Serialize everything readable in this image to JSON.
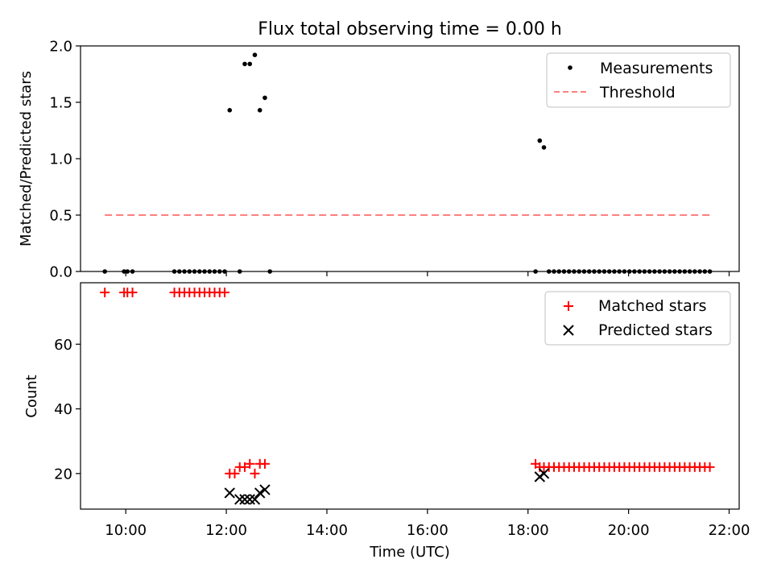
{
  "chart_data": [
    {
      "type": "scatter",
      "title": "Flux total observing time = 0.00 h",
      "xlabel": "",
      "ylabel": "Matched/Predicted stars",
      "xlim": [
        "09:06",
        "22:12"
      ],
      "ylim": [
        0,
        2.0
      ],
      "yticks": [
        0.0,
        0.5,
        1.0,
        1.5,
        2.0
      ],
      "ytick_labels": [
        "0.0",
        "0.5",
        "1.0",
        "1.5",
        "2.0"
      ],
      "legend_position": "top-right",
      "series": [
        {
          "name": "Measurements",
          "kind": "points",
          "color": "#000000",
          "x": [
            "09:35",
            "09:58",
            "10:02",
            "10:08",
            "10:58",
            "11:04",
            "11:10",
            "11:16",
            "11:22",
            "11:28",
            "11:34",
            "11:40",
            "11:46",
            "11:52",
            "11:58",
            "12:04",
            "12:16",
            "12:22",
            "12:28",
            "12:34",
            "12:40",
            "12:46",
            "12:52",
            "18:09",
            "18:14",
            "18:19",
            "18:25",
            "18:31",
            "18:37",
            "18:43",
            "18:49",
            "18:55",
            "19:01",
            "19:07",
            "19:13",
            "19:19",
            "19:25",
            "19:31",
            "19:37",
            "19:43",
            "19:49",
            "19:55",
            "20:01",
            "20:07",
            "20:13",
            "20:19",
            "20:25",
            "20:31",
            "20:37",
            "20:43",
            "20:49",
            "20:55",
            "21:01",
            "21:07",
            "21:13",
            "21:19",
            "21:25",
            "21:31",
            "21:37"
          ],
          "y": [
            0,
            0,
            0,
            0,
            0,
            0,
            0,
            0,
            0,
            0,
            0,
            0,
            0,
            0,
            0,
            1.43,
            0,
            1.84,
            1.84,
            1.92,
            1.43,
            1.54,
            0,
            0,
            1.16,
            1.1,
            0,
            0,
            0,
            0,
            0,
            0,
            0,
            0,
            0,
            0,
            0,
            0,
            0,
            0,
            0,
            0,
            0,
            0,
            0,
            0,
            0,
            0,
            0,
            0,
            0,
            0,
            0,
            0,
            0,
            0,
            0,
            0,
            0
          ]
        },
        {
          "name": "Threshold",
          "kind": "dashed-line",
          "color": "#ff7f7f",
          "x": [
            "09:35",
            "21:37"
          ],
          "y": [
            0.5,
            0.5
          ]
        }
      ]
    },
    {
      "type": "scatter",
      "title": "",
      "xlabel": "Time (UTC)",
      "ylabel": "Count",
      "xlim": [
        "09:06",
        "22:12"
      ],
      "ylim": [
        9,
        79
      ],
      "yticks": [
        20,
        40,
        60
      ],
      "ytick_labels": [
        "20",
        "40",
        "60"
      ],
      "xticks": [
        "10:00",
        "12:00",
        "14:00",
        "16:00",
        "18:00",
        "20:00",
        "22:00"
      ],
      "legend_position": "top-right",
      "series": [
        {
          "name": "Matched stars",
          "kind": "plus",
          "color": "#ff0000",
          "x": [
            "09:35",
            "09:58",
            "10:02",
            "10:08",
            "10:58",
            "11:04",
            "11:10",
            "11:16",
            "11:22",
            "11:28",
            "11:34",
            "11:40",
            "11:46",
            "11:52",
            "11:58",
            "12:04",
            "12:10",
            "12:16",
            "12:22",
            "12:28",
            "12:34",
            "12:40",
            "12:46",
            "18:09",
            "18:14",
            "18:19",
            "18:25",
            "18:31",
            "18:37",
            "18:43",
            "18:49",
            "18:55",
            "19:01",
            "19:07",
            "19:13",
            "19:19",
            "19:25",
            "19:31",
            "19:37",
            "19:43",
            "19:49",
            "19:55",
            "20:01",
            "20:07",
            "20:13",
            "20:19",
            "20:25",
            "20:31",
            "20:37",
            "20:43",
            "20:49",
            "20:55",
            "21:01",
            "21:07",
            "21:13",
            "21:19",
            "21:25",
            "21:31",
            "21:37"
          ],
          "y": [
            76,
            76,
            76,
            76,
            76,
            76,
            76,
            76,
            76,
            76,
            76,
            76,
            76,
            76,
            76,
            20,
            20,
            22,
            22,
            23,
            20,
            23,
            23,
            23,
            22,
            22,
            22,
            22,
            22,
            22,
            22,
            22,
            22,
            22,
            22,
            22,
            22,
            22,
            22,
            22,
            22,
            22,
            22,
            22,
            22,
            22,
            22,
            22,
            22,
            22,
            22,
            22,
            22,
            22,
            22,
            22,
            22,
            22,
            22
          ]
        },
        {
          "name": "Predicted stars",
          "kind": "x",
          "color": "#000000",
          "x": [
            "12:04",
            "12:16",
            "12:22",
            "12:28",
            "12:34",
            "12:40",
            "12:46",
            "18:14",
            "18:19"
          ],
          "y": [
            14,
            12,
            12,
            12,
            12,
            14,
            15,
            19,
            20
          ]
        }
      ]
    }
  ]
}
